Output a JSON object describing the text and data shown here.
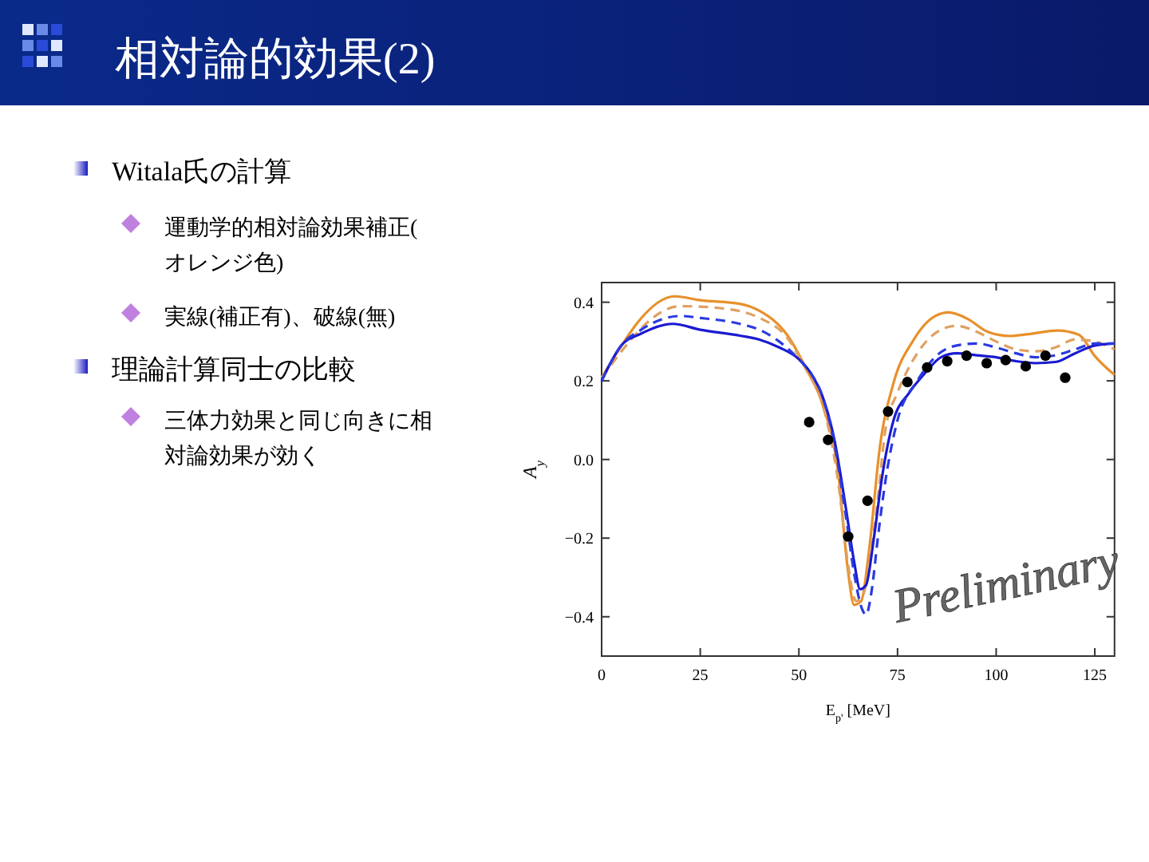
{
  "chart_data": {
    "type": "line",
    "title": "相対論的効果(2)",
    "xlabel": "E$_{p'}$ [MeV]",
    "ylabel": "A$_{y}$",
    "xlim": [
      0,
      130
    ],
    "xticks": [
      0,
      25,
      50,
      75,
      100,
      125
    ],
    "ylim": [
      -0.5,
      0.45
    ],
    "yticks": [
      {
        "value": -0.4,
        "label": "−0.4"
      },
      {
        "value": -0.2,
        "label": "−0.2"
      },
      {
        "value": 0,
        "label": "0.0"
      },
      0.2,
      0.4
    ],
    "grid": false,
    "annotations": [
      "Witala氏の計算",
      "運動学的相対論効果補正(オレンジ色)",
      "実線(補正有)、破線(無)",
      "理論計算同士の比較",
      "三体力効果と同じ向きに相対論効果が効く",
      "Preliminary"
    ],
    "series": [
      {
        "color": "#e8902a",
        "line_style": "solid",
        "x": [
          0,
          18.6,
          25,
          35,
          40,
          47,
          52,
          56,
          60,
          62.4,
          64,
          65.8,
          67.8,
          70.5,
          74,
          79,
          84.6,
          88,
          92.7,
          98,
          103.5,
          109,
          115.6,
          121,
          125,
          130
        ],
        "values": [
          0.208,
          0.415,
          0.405,
          0.396,
          0.378,
          0.317,
          0.228,
          0.14,
          -0.037,
          -0.28,
          -0.37,
          -0.36,
          -0.23,
          0.03,
          0.195,
          0.303,
          0.365,
          0.374,
          0.358,
          0.324,
          0.314,
          0.32,
          0.328,
          0.317,
          0.263,
          0.215
        ]
      },
      {
        "color": "#e0a060",
        "line_style": "dashed",
        "x": [
          0,
          20,
          30,
          40,
          47,
          52,
          56,
          60,
          62.5,
          64.5,
          66,
          68,
          70,
          72,
          75,
          80,
          86,
          90,
          95,
          100,
          105,
          110,
          115,
          120,
          125,
          130
        ],
        "values": [
          0.208,
          0.39,
          0.385,
          0.36,
          0.31,
          0.225,
          0.14,
          -0.06,
          -0.27,
          -0.36,
          -0.35,
          -0.26,
          -0.1,
          0.08,
          0.17,
          0.27,
          0.33,
          0.34,
          0.325,
          0.3,
          0.28,
          0.275,
          0.285,
          0.305,
          0.3,
          0.28
        ]
      },
      {
        "color": "#1a1ad0",
        "line_style": "solid",
        "x": [
          0,
          5,
          10,
          18,
          25,
          35,
          40,
          45,
          50,
          53,
          56,
          59,
          62,
          64,
          65.5,
          67,
          69,
          71,
          74,
          78,
          82,
          86,
          90,
          95,
          100,
          105,
          110,
          115,
          120,
          125,
          130
        ],
        "values": [
          0.2,
          0.29,
          0.32,
          0.345,
          0.33,
          0.315,
          0.305,
          0.285,
          0.255,
          0.22,
          0.16,
          0.05,
          -0.13,
          -0.26,
          -0.33,
          -0.32,
          -0.2,
          -0.05,
          0.1,
          0.17,
          0.22,
          0.26,
          0.27,
          0.265,
          0.26,
          0.25,
          0.245,
          0.248,
          0.27,
          0.29,
          0.295
        ]
      },
      {
        "color": "#2a3ae0",
        "line_style": "dashed",
        "x": [
          0,
          5,
          10,
          20,
          25,
          35,
          40,
          45,
          50,
          53,
          56,
          59,
          62,
          64,
          66,
          67,
          68.5,
          70,
          72,
          75,
          80,
          85,
          90,
          95,
          100,
          105,
          110,
          115,
          120,
          125,
          130
        ],
        "values": [
          0.2,
          0.29,
          0.33,
          0.365,
          0.36,
          0.345,
          0.33,
          0.3,
          0.255,
          0.22,
          0.16,
          0.04,
          -0.15,
          -0.29,
          -0.38,
          -0.395,
          -0.33,
          -0.2,
          -0.05,
          0.1,
          0.2,
          0.265,
          0.29,
          0.295,
          0.285,
          0.27,
          0.26,
          0.265,
          0.28,
          0.295,
          0.295
        ]
      },
      {
        "type": "scatter",
        "color": "#000000",
        "marker": "circle",
        "x": [
          52.6,
          57.4,
          62.5,
          67.4,
          72.6,
          77.5,
          82.5,
          87.6,
          92.5,
          97.6,
          102.4,
          107.5,
          112.5,
          117.5
        ],
        "values": [
          0.095,
          0.05,
          -0.196,
          -0.105,
          0.122,
          0.197,
          0.234,
          0.25,
          0.264,
          0.245,
          0.253,
          0.237,
          0.264,
          0.208
        ]
      }
    ]
  }
}
